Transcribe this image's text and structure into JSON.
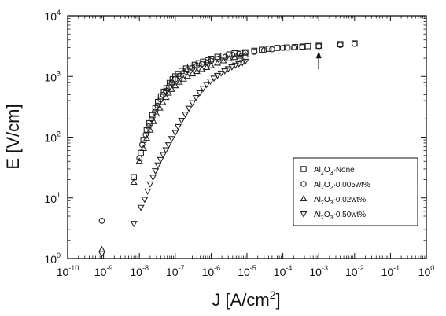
{
  "chart_data": {
    "type": "scatter",
    "xlabel": "J [A/cm²]",
    "ylabel": "E [V/cm]",
    "xlabel_parts": {
      "base": "J [A/cm",
      "sup": "2",
      "tail": "]"
    },
    "x_scale": "log",
    "y_scale": "log",
    "xlim": [
      1e-10,
      1
    ],
    "ylim": [
      1,
      10000
    ],
    "x_ticks": [
      {
        "base": "10",
        "exp": "-10",
        "value": 1e-10
      },
      {
        "base": "10",
        "exp": "-9",
        "value": 1e-09
      },
      {
        "base": "10",
        "exp": "-8",
        "value": 1e-08
      },
      {
        "base": "10",
        "exp": "-7",
        "value": 1e-07
      },
      {
        "base": "10",
        "exp": "-6",
        "value": 1e-06
      },
      {
        "base": "10",
        "exp": "-5",
        "value": 1e-05
      },
      {
        "base": "10",
        "exp": "-4",
        "value": 0.0001
      },
      {
        "base": "10",
        "exp": "-3",
        "value": 0.001
      },
      {
        "base": "10",
        "exp": "-2",
        "value": 0.01
      },
      {
        "base": "10",
        "exp": "-1",
        "value": 0.1
      },
      {
        "base": "10",
        "exp": "0",
        "value": 1
      }
    ],
    "y_ticks": [
      {
        "base": "10",
        "exp": "0",
        "value": 1
      },
      {
        "base": "10",
        "exp": "1",
        "value": 10
      },
      {
        "base": "10",
        "exp": "2",
        "value": 100
      },
      {
        "base": "10",
        "exp": "3",
        "value": 1000
      },
      {
        "base": "10",
        "exp": "4",
        "value": 10000
      }
    ],
    "grid": false,
    "legend_position": "right-center",
    "annotations": [
      {
        "type": "arrow",
        "x": 0.001,
        "y_from": 1300,
        "y_to": 2600
      }
    ],
    "series": [
      {
        "name": "Al2O3-None",
        "legend": {
          "pre": "Al",
          "sub1": "2",
          "mid": "O",
          "sub2": "3",
          "post": "-None"
        },
        "marker": "square",
        "x": [
          7e-09,
          1.1e-08,
          1.3e-08,
          1.6e-08,
          1.9e-08,
          2.3e-08,
          2.8e-08,
          3.3e-08,
          4e-08,
          4.8e-08,
          5.7e-08,
          7e-08,
          8.5e-08,
          1e-07,
          1.2e-07,
          1.5e-07,
          2e-07,
          2.6e-07,
          3.5e-07,
          4.5e-07,
          6e-07,
          8e-07,
          1e-06,
          1.5e-06,
          2.2e-06,
          3.2e-06,
          4.5e-06,
          6.5e-06,
          9e-06,
          1.6e-05,
          2.6e-05,
          4e-05,
          7e-05,
          0.00013,
          0.00022,
          0.00035,
          0.0005,
          0.001,
          0.004,
          0.01
        ],
        "y": [
          22,
          55,
          90,
          130,
          170,
          230,
          300,
          380,
          470,
          560,
          640,
          780,
          900,
          1000,
          1100,
          1230,
          1350,
          1450,
          1550,
          1650,
          1750,
          1850,
          1950,
          2100,
          2200,
          2300,
          2400,
          2450,
          2500,
          2650,
          2750,
          2850,
          2950,
          3000,
          3050,
          3100,
          3150,
          3200,
          3400,
          3500
        ]
      },
      {
        "name": "Al2O2-0.005wt%",
        "legend": {
          "pre": "Al",
          "sub1": "2",
          "mid": "O",
          "sub2": "2",
          "post": "-0.005wt%"
        },
        "marker": "circle",
        "x": [
          9e-10,
          1e-08,
          1.2e-08,
          1.5e-08,
          1.8e-08,
          2.2e-08,
          2.7e-08,
          3.2e-08,
          3.9e-08,
          4.6e-08,
          5.5e-08,
          6.7e-08,
          8e-08,
          1e-07,
          1.3e-07,
          1.7e-07,
          2.2e-07,
          3e-07,
          4e-07,
          5.5e-07,
          7.5e-07,
          1e-06,
          1.6e-06,
          2.5e-06,
          4e-06,
          6e-06,
          9e-06,
          1.6e-05,
          3e-05,
          5e-05,
          0.0001,
          0.0002,
          0.00035,
          0.001,
          0.004,
          0.01
        ],
        "y": [
          4.2,
          45,
          75,
          110,
          150,
          200,
          260,
          330,
          420,
          500,
          580,
          680,
          790,
          900,
          1020,
          1150,
          1270,
          1380,
          1500,
          1600,
          1700,
          1800,
          1950,
          2100,
          2250,
          2350,
          2450,
          2550,
          2700,
          2800,
          2950,
          3000,
          3050,
          3150,
          3300,
          3450
        ]
      },
      {
        "name": "Al2O3-0.02wt%",
        "legend": {
          "pre": "Al",
          "sub1": "2",
          "mid": "O",
          "sub2": "3",
          "post": "-0.02wt%"
        },
        "marker": "triangle-up",
        "x": [
          9e-10,
          7e-09,
          1e-08,
          1.3e-08,
          1.6e-08,
          2e-08,
          2.5e-08,
          3e-08,
          3.7e-08,
          4.5e-08,
          5.5e-08,
          6.5e-08,
          8e-08,
          1e-07,
          1.3e-07,
          1.7e-07,
          2.2e-07,
          3e-07,
          4e-07,
          5.5e-07,
          7.5e-07,
          1e-06,
          1.5e-06,
          2.2e-06,
          3.2e-06,
          4.5e-06,
          6.5e-06,
          9e-06
        ],
        "y": [
          1.4,
          18,
          40,
          65,
          95,
          130,
          180,
          240,
          300,
          370,
          450,
          530,
          610,
          700,
          800,
          900,
          1000,
          1100,
          1200,
          1300,
          1400,
          1500,
          1650,
          1800,
          1950,
          2050,
          2150,
          2250
        ]
      },
      {
        "name": "Al2O3-0.50wt%",
        "legend": {
          "pre": "Al",
          "sub1": "2",
          "mid": "O",
          "sub2": "3",
          "post": "-0.50wt%"
        },
        "marker": "triangle-down",
        "x": [
          9e-10,
          7e-09,
          1.1e-08,
          1.4e-08,
          1.7e-08,
          2e-08,
          2.4e-08,
          2.8e-08,
          3.3e-08,
          3.9e-08,
          4.6e-08,
          5.5e-08,
          6.5e-08,
          8e-08,
          1e-07,
          1.2e-07,
          1.5e-07,
          1.9e-07,
          2.4e-07,
          3e-07,
          3.8e-07,
          4.8e-07,
          6e-07,
          7.5e-07,
          9.5e-07,
          1.2e-06,
          1.5e-06,
          1.9e-06,
          2.4e-06,
          3e-06,
          3.8e-06,
          4.8e-06,
          6e-06,
          7.5e-06,
          9e-06
        ],
        "y": [
          1.2,
          3.8,
          7,
          9.5,
          13,
          17,
          22,
          28,
          35,
          43,
          52,
          62,
          75,
          95,
          120,
          150,
          190,
          240,
          300,
          370,
          450,
          540,
          640,
          740,
          840,
          940,
          1040,
          1140,
          1240,
          1340,
          1440,
          1540,
          1620,
          1700,
          1780
        ]
      }
    ]
  }
}
